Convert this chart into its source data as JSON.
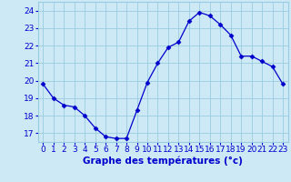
{
  "x": [
    0,
    1,
    2,
    3,
    4,
    5,
    6,
    7,
    8,
    9,
    10,
    11,
    12,
    13,
    14,
    15,
    16,
    17,
    18,
    19,
    20,
    21,
    22,
    23
  ],
  "y": [
    19.8,
    19.0,
    18.6,
    18.5,
    18.0,
    17.3,
    16.8,
    16.7,
    16.7,
    18.3,
    19.9,
    21.0,
    21.9,
    22.2,
    23.4,
    23.9,
    23.7,
    23.2,
    22.6,
    21.4,
    21.4,
    21.1,
    20.8,
    19.8
  ],
  "line_color": "#0000cc",
  "marker": "D",
  "marker_size": 2.5,
  "bg_color": "#cce9f5",
  "grid_color": "#99cce0",
  "xlabel": "Graphe des températures (°c)",
  "xlabel_color": "#0000cc",
  "xlabel_fontsize": 7.5,
  "tick_color": "#0000cc",
  "tick_fontsize": 6.5,
  "ylim": [
    16.5,
    24.5
  ],
  "yticks": [
    17,
    18,
    19,
    20,
    21,
    22,
    23,
    24
  ],
  "xlim": [
    -0.5,
    23.5
  ],
  "xticks": [
    0,
    1,
    2,
    3,
    4,
    5,
    6,
    7,
    8,
    9,
    10,
    11,
    12,
    13,
    14,
    15,
    16,
    17,
    18,
    19,
    20,
    21,
    22,
    23
  ],
  "xtick_labels": [
    "0",
    "1",
    "2",
    "3",
    "4",
    "5",
    "6",
    "7",
    "8",
    "9",
    "10",
    "11",
    "12",
    "13",
    "14",
    "15",
    "16",
    "17",
    "18",
    "19",
    "20",
    "21",
    "22",
    "23"
  ]
}
